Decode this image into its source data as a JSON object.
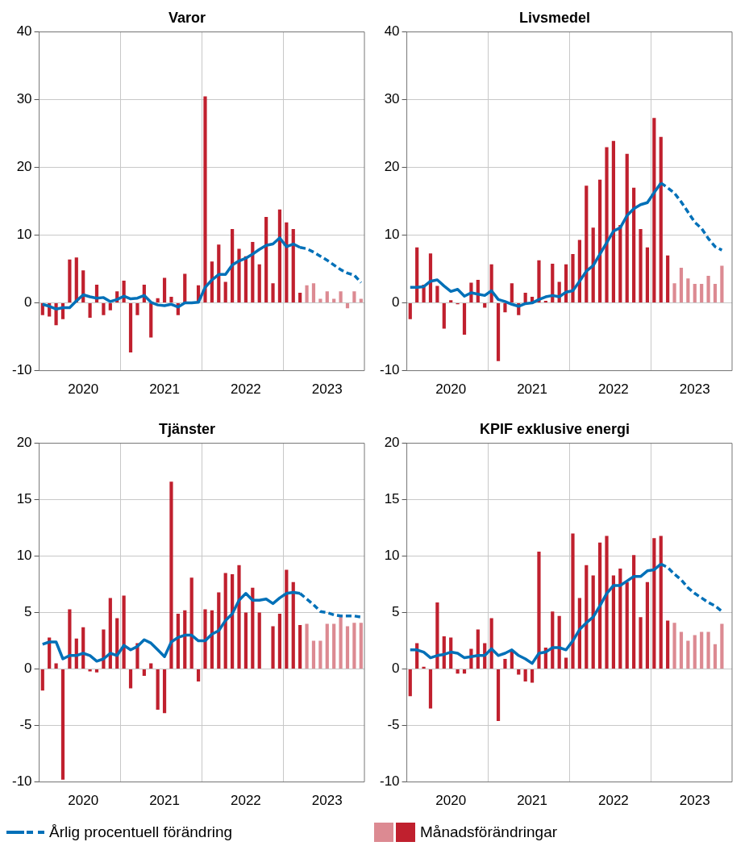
{
  "chart_data": [
    {
      "type": "bar",
      "title": "Varor",
      "categories": [
        null,
        null,
        null,
        null,
        null,
        null,
        "2020",
        null,
        null,
        null,
        null,
        null,
        null,
        null,
        null,
        null,
        null,
        null,
        "2021",
        null,
        null,
        null,
        null,
        null,
        null,
        null,
        null,
        null,
        null,
        null,
        "2022",
        null,
        null,
        null,
        null,
        null,
        null,
        null,
        null,
        null,
        null,
        null,
        "2023",
        null,
        null,
        null,
        null,
        null
      ],
      "series": [
        {
          "name": "Årlig procentuell förändring",
          "type": "line",
          "color": "#0070b8",
          "line_style": "solid",
          "values": [
            -0.2,
            -0.5,
            -0.9,
            -0.7,
            -0.7,
            0.3,
            1.2,
            0.9,
            0.7,
            0.8,
            0.2,
            0.5,
            1.0,
            0.6,
            0.7,
            1.1,
            0.1,
            -0.3,
            -0.4,
            -0.2,
            -0.6,
            0,
            0,
            0.1,
            2.3,
            3.4,
            4.2,
            4.2,
            5.6,
            6.2,
            6.6,
            7.2,
            7.9,
            8.5,
            8.7,
            9.6,
            8.3,
            8.7,
            8.2,
            null,
            null,
            null,
            null,
            null,
            null,
            null,
            null,
            null
          ]
        },
        {
          "type": "line",
          "color": "#0070b8",
          "line_style": "dashed",
          "values": [
            null,
            null,
            null,
            null,
            null,
            null,
            null,
            null,
            null,
            null,
            null,
            null,
            null,
            null,
            null,
            null,
            null,
            null,
            null,
            null,
            null,
            null,
            null,
            null,
            null,
            null,
            null,
            null,
            null,
            null,
            null,
            null,
            null,
            null,
            null,
            null,
            null,
            null,
            8.2,
            8.0,
            7.5,
            6.9,
            6.3,
            5.6,
            4.9,
            4.4,
            4.1,
            3.0
          ]
        },
        {
          "name": "Månadsförändringar",
          "color": "#c0202e",
          "values": [
            -1.8,
            -2.0,
            -3.3,
            -2.4,
            6.4,
            6.7,
            4.8,
            -2.2,
            2.7,
            -1.8,
            -1.1,
            1.7,
            3.3,
            -7.3,
            -1.8,
            2.7,
            -5.1,
            0.7,
            3.7,
            0.9,
            -1.8,
            4.3,
            null,
            2.6,
            30.5,
            6.1,
            8.6,
            3.1,
            10.9,
            8.0,
            6.9,
            9.0,
            5.7,
            12.7,
            2.9,
            13.8,
            11.9,
            10.9,
            1.5,
            null,
            null,
            null,
            null,
            null,
            null,
            null,
            null,
            null
          ]
        },
        {
          "color": "#dc8a92",
          "values": [
            null,
            null,
            null,
            null,
            null,
            null,
            null,
            null,
            null,
            null,
            null,
            null,
            null,
            null,
            null,
            null,
            null,
            null,
            null,
            null,
            null,
            null,
            null,
            null,
            null,
            null,
            null,
            null,
            null,
            null,
            null,
            null,
            null,
            null,
            null,
            null,
            null,
            null,
            null,
            2.6,
            2.9,
            0.6,
            1.7,
            0.6,
            1.7,
            -0.8,
            1.7,
            0.6
          ]
        }
      ],
      "ylim": [
        -10,
        40
      ],
      "yticks": [
        -10,
        0,
        10,
        20,
        30,
        40
      ],
      "grid": true,
      "legend": "bottom"
    },
    {
      "type": "bar",
      "title": "Livsmedel",
      "categories": [
        null,
        null,
        null,
        null,
        null,
        null,
        "2020",
        null,
        null,
        null,
        null,
        null,
        null,
        null,
        null,
        null,
        null,
        null,
        "2021",
        null,
        null,
        null,
        null,
        null,
        null,
        null,
        null,
        null,
        null,
        null,
        "2022",
        null,
        null,
        null,
        null,
        null,
        null,
        null,
        null,
        null,
        null,
        null,
        "2023",
        null,
        null,
        null,
        null,
        null
      ],
      "series": [
        {
          "type": "line",
          "color": "#0070b8",
          "line_style": "solid",
          "values": [
            2.3,
            2.3,
            2.4,
            3.2,
            3.4,
            2.5,
            1.7,
            2.0,
            1.0,
            1.5,
            1.3,
            1.1,
            1.8,
            0.5,
            0.2,
            -0.2,
            -0.5,
            -0.1,
            0,
            0.5,
            0.9,
            1.1,
            0.9,
            1.6,
            1.8,
            3.2,
            4.7,
            5.5,
            7.2,
            8.9,
            10.6,
            11.1,
            12.9,
            13.9,
            14.5,
            14.8,
            16.3,
            17.7,
            null,
            null,
            null,
            null,
            null,
            null,
            null,
            null,
            null,
            null
          ]
        },
        {
          "type": "line",
          "color": "#0070b8",
          "line_style": "dashed",
          "values": [
            null,
            null,
            null,
            null,
            null,
            null,
            null,
            null,
            null,
            null,
            null,
            null,
            null,
            null,
            null,
            null,
            null,
            null,
            null,
            null,
            null,
            null,
            null,
            null,
            null,
            null,
            null,
            null,
            null,
            null,
            null,
            null,
            null,
            null,
            null,
            null,
            null,
            17.7,
            17.0,
            16.2,
            14.9,
            13.4,
            11.9,
            11.0,
            9.5,
            8.3,
            7.8,
            null
          ]
        },
        {
          "color": "#c0202e",
          "values": [
            -2.4,
            8.2,
            2.7,
            7.3,
            2.5,
            -3.8,
            0.4,
            -0.2,
            -4.7,
            3.0,
            3.4,
            -0.7,
            5.7,
            -8.6,
            -1.4,
            2.9,
            -1.8,
            1.5,
            0.9,
            6.3,
            0.3,
            5.8,
            3.1,
            5.7,
            7.2,
            9.3,
            17.3,
            11.1,
            18.2,
            23.0,
            23.9,
            11.5,
            22.0,
            17.0,
            10.9,
            8.2,
            27.3,
            24.5,
            7.0,
            null,
            null,
            null,
            null,
            null,
            null,
            null,
            null,
            null
          ]
        },
        {
          "color": "#dc8a92",
          "values": [
            null,
            null,
            null,
            null,
            null,
            null,
            null,
            null,
            null,
            null,
            null,
            null,
            null,
            null,
            null,
            null,
            null,
            null,
            null,
            null,
            null,
            null,
            null,
            null,
            null,
            null,
            null,
            null,
            null,
            null,
            null,
            null,
            null,
            null,
            null,
            null,
            null,
            null,
            null,
            2.9,
            5.2,
            3.6,
            2.8,
            2.8,
            4.0,
            2.8,
            5.5,
            null
          ]
        }
      ],
      "ylim": [
        -10,
        40
      ],
      "yticks": [
        -10,
        0,
        10,
        20,
        30,
        40
      ],
      "grid": true
    },
    {
      "type": "bar",
      "title": "Tjänster",
      "categories": [
        null,
        null,
        null,
        null,
        null,
        null,
        "2020",
        null,
        null,
        null,
        null,
        null,
        null,
        null,
        null,
        null,
        null,
        null,
        "2021",
        null,
        null,
        null,
        null,
        null,
        null,
        null,
        null,
        null,
        null,
        null,
        "2022",
        null,
        null,
        null,
        null,
        null,
        null,
        null,
        null,
        null,
        null,
        null,
        "2023",
        null,
        null,
        null,
        null,
        null
      ],
      "series": [
        {
          "type": "line",
          "color": "#0070b8",
          "line_style": "solid",
          "values": [
            2.2,
            2.4,
            2.4,
            0.9,
            1.2,
            1.2,
            1.4,
            1.2,
            0.7,
            0.9,
            1.4,
            1.2,
            2.1,
            1.7,
            2.0,
            2.6,
            2.3,
            1.7,
            1.1,
            2.4,
            2.8,
            3.0,
            3.0,
            2.5,
            2.5,
            3.1,
            3.4,
            4.3,
            4.9,
            6.1,
            6.7,
            6.1,
            6.1,
            6.2,
            5.8,
            6.3,
            6.7,
            6.8,
            6.7,
            null,
            null,
            null,
            null,
            null,
            null,
            null,
            null,
            null
          ]
        },
        {
          "type": "line",
          "color": "#0070b8",
          "line_style": "dashed",
          "values": [
            null,
            null,
            null,
            null,
            null,
            null,
            null,
            null,
            null,
            null,
            null,
            null,
            null,
            null,
            null,
            null,
            null,
            null,
            null,
            null,
            null,
            null,
            null,
            null,
            null,
            null,
            null,
            null,
            null,
            null,
            null,
            null,
            null,
            null,
            null,
            null,
            null,
            null,
            6.7,
            6.2,
            5.7,
            5.1,
            5.0,
            4.8,
            4.7,
            4.7,
            4.7,
            4.6
          ]
        },
        {
          "color": "#c0202e",
          "values": [
            -1.9,
            2.8,
            0.5,
            -9.8,
            5.3,
            2.7,
            3.7,
            -0.2,
            -0.3,
            3.5,
            6.3,
            4.5,
            6.5,
            -1.7,
            2.3,
            -0.6,
            0.5,
            -3.6,
            -3.9,
            16.6,
            4.9,
            5.2,
            8.1,
            -1.1,
            5.3,
            5.2,
            6.8,
            8.5,
            8.4,
            9.2,
            5.0,
            7.2,
            5.0,
            null,
            3.8,
            4.9,
            8.8,
            7.7,
            3.9,
            null,
            null,
            null,
            null,
            null,
            null,
            null,
            null,
            null
          ]
        },
        {
          "color": "#dc8a92",
          "values": [
            null,
            null,
            null,
            null,
            null,
            null,
            null,
            null,
            null,
            null,
            null,
            null,
            null,
            null,
            null,
            null,
            null,
            null,
            null,
            null,
            null,
            null,
            null,
            null,
            null,
            null,
            null,
            null,
            null,
            null,
            null,
            null,
            null,
            null,
            null,
            null,
            null,
            null,
            null,
            4.0,
            2.5,
            2.5,
            4.0,
            4.0,
            4.7,
            3.8,
            4.1,
            4.1
          ]
        }
      ],
      "ylim": [
        -10,
        20
      ],
      "yticks": [
        -10,
        -5,
        0,
        5,
        10,
        15,
        20
      ],
      "grid": true
    },
    {
      "type": "bar",
      "title": "KPIF exklusive energi",
      "categories": [
        null,
        null,
        null,
        null,
        null,
        null,
        "2020",
        null,
        null,
        null,
        null,
        null,
        null,
        null,
        null,
        null,
        null,
        null,
        "2021",
        null,
        null,
        null,
        null,
        null,
        null,
        null,
        null,
        null,
        null,
        null,
        "2022",
        null,
        null,
        null,
        null,
        null,
        null,
        null,
        null,
        null,
        null,
        null,
        "2023",
        null,
        null,
        null,
        null,
        null
      ],
      "series": [
        {
          "type": "line",
          "color": "#0070b8",
          "line_style": "solid",
          "values": [
            1.7,
            1.7,
            1.5,
            1.0,
            1.2,
            1.3,
            1.5,
            1.4,
            1.0,
            1.1,
            1.2,
            1.2,
            1.8,
            1.2,
            1.4,
            1.7,
            1.2,
            0.9,
            0.5,
            1.4,
            1.5,
            1.9,
            1.9,
            1.7,
            2.5,
            3.5,
            4.1,
            4.6,
            5.6,
            6.7,
            7.4,
            7.4,
            7.8,
            8.2,
            8.2,
            8.7,
            8.8,
            9.3,
            null,
            null,
            null,
            null,
            null,
            null,
            null,
            null,
            null,
            null
          ]
        },
        {
          "type": "line",
          "color": "#0070b8",
          "line_style": "dashed",
          "values": [
            null,
            null,
            null,
            null,
            null,
            null,
            null,
            null,
            null,
            null,
            null,
            null,
            null,
            null,
            null,
            null,
            null,
            null,
            null,
            null,
            null,
            null,
            null,
            null,
            null,
            null,
            null,
            null,
            null,
            null,
            null,
            null,
            null,
            null,
            null,
            null,
            null,
            9.3,
            9.0,
            8.4,
            7.9,
            7.2,
            6.7,
            6.3,
            5.9,
            5.6,
            5.1,
            null
          ]
        },
        {
          "color": "#c0202e",
          "values": [
            -2.4,
            2.3,
            0.2,
            -3.5,
            5.9,
            2.9,
            2.8,
            -0.4,
            -0.4,
            1.8,
            3.5,
            2.3,
            4.5,
            -4.6,
            0.9,
            1.6,
            -0.5,
            -1.1,
            -1.2,
            10.4,
            1.9,
            5.1,
            4.7,
            1.0,
            12.0,
            6.3,
            9.2,
            8.3,
            11.2,
            11.8,
            8.3,
            8.9,
            7.7,
            10.1,
            4.6,
            7.7,
            11.6,
            11.8,
            4.3,
            null,
            null,
            null,
            null,
            null,
            null,
            null,
            null,
            null
          ]
        },
        {
          "color": "#dc8a92",
          "values": [
            null,
            null,
            null,
            null,
            null,
            null,
            null,
            null,
            null,
            null,
            null,
            null,
            null,
            null,
            null,
            null,
            null,
            null,
            null,
            null,
            null,
            null,
            null,
            null,
            null,
            null,
            null,
            null,
            null,
            null,
            null,
            null,
            null,
            null,
            null,
            null,
            null,
            null,
            null,
            4.1,
            3.3,
            2.5,
            3.0,
            3.3,
            3.3,
            2.2,
            4.0,
            null
          ]
        }
      ],
      "ylim": [
        -10,
        20
      ],
      "yticks": [
        -10,
        -5,
        0,
        5,
        10,
        15,
        20
      ],
      "grid": true
    }
  ]
}
